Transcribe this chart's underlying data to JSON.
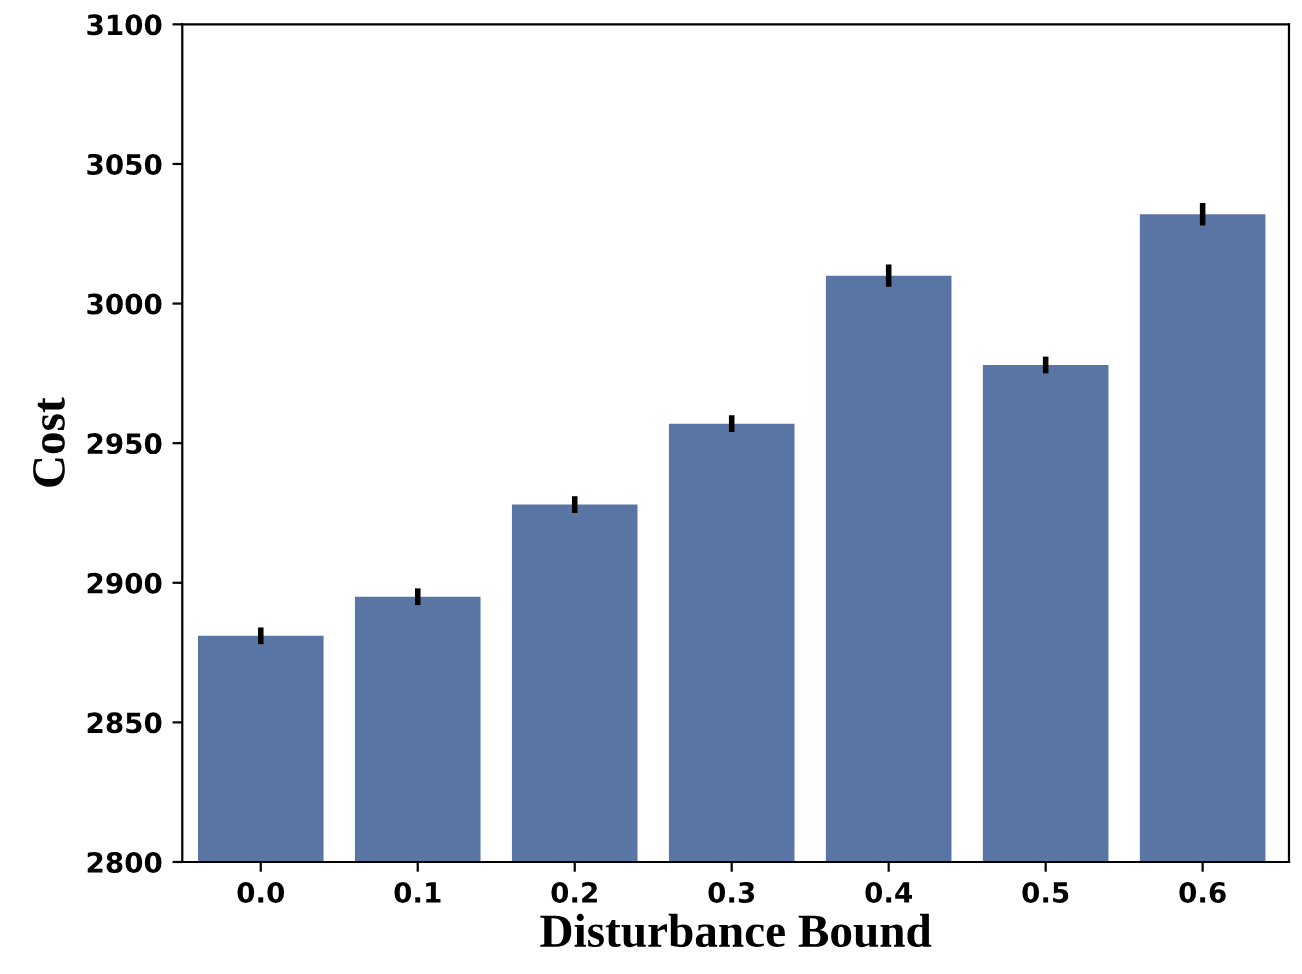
{
  "chart_data": {
    "type": "bar",
    "xlabel": "Disturbance Bound",
    "ylabel": "Cost",
    "categories": [
      "0.0",
      "0.1",
      "0.2",
      "0.3",
      "0.4",
      "0.5",
      "0.6"
    ],
    "values": [
      2881,
      2895,
      2928,
      2957,
      3010,
      2978,
      3032
    ],
    "errors": [
      3,
      3,
      3,
      3,
      4,
      3,
      4
    ],
    "color": "#5975a4",
    "ylim": [
      2800,
      3100
    ],
    "yticks": [
      2800,
      2850,
      2900,
      2950,
      3000,
      3050,
      3100
    ],
    "grid": false
  }
}
